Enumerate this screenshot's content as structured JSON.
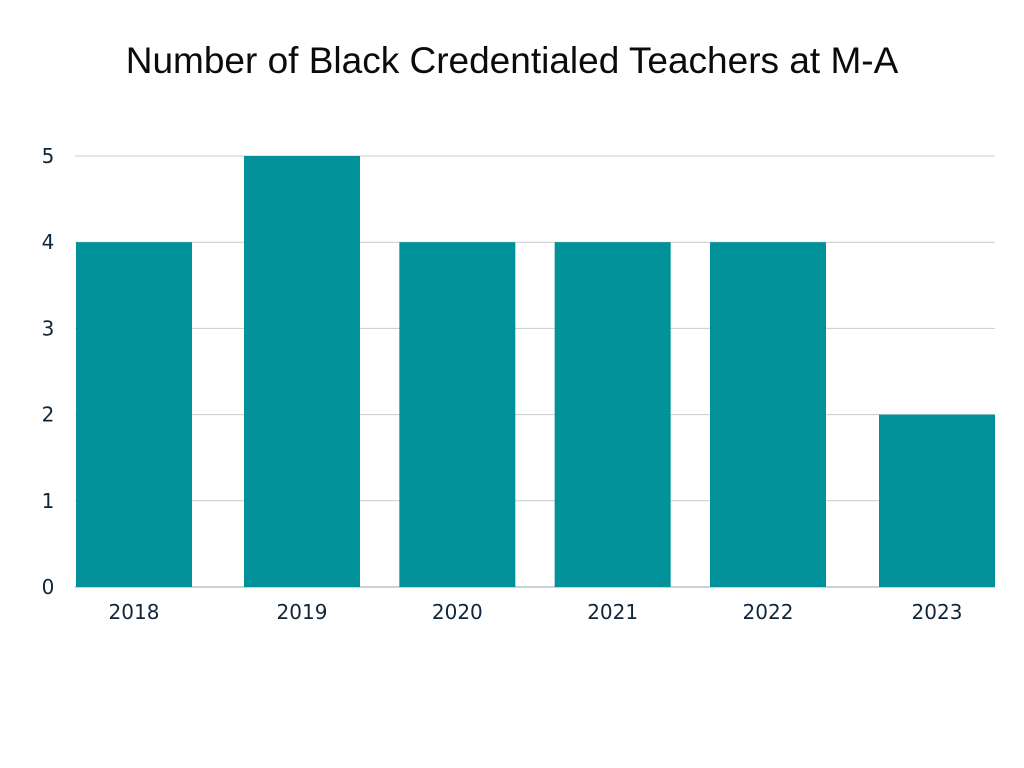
{
  "chart_data": {
    "type": "bar",
    "title": "Number of Black Credentialed Teachers at M-A",
    "categories": [
      "2018",
      "2019",
      "2020",
      "2021",
      "2022",
      "2023"
    ],
    "values": [
      4,
      5,
      4,
      4,
      4,
      2
    ],
    "xlabel": "",
    "ylabel": "",
    "ylim": [
      0,
      5
    ],
    "yticks": [
      0,
      1,
      2,
      3,
      4,
      5
    ],
    "grid": true,
    "bar_color": "#009199",
    "grid_color": "#c5ccd0"
  }
}
